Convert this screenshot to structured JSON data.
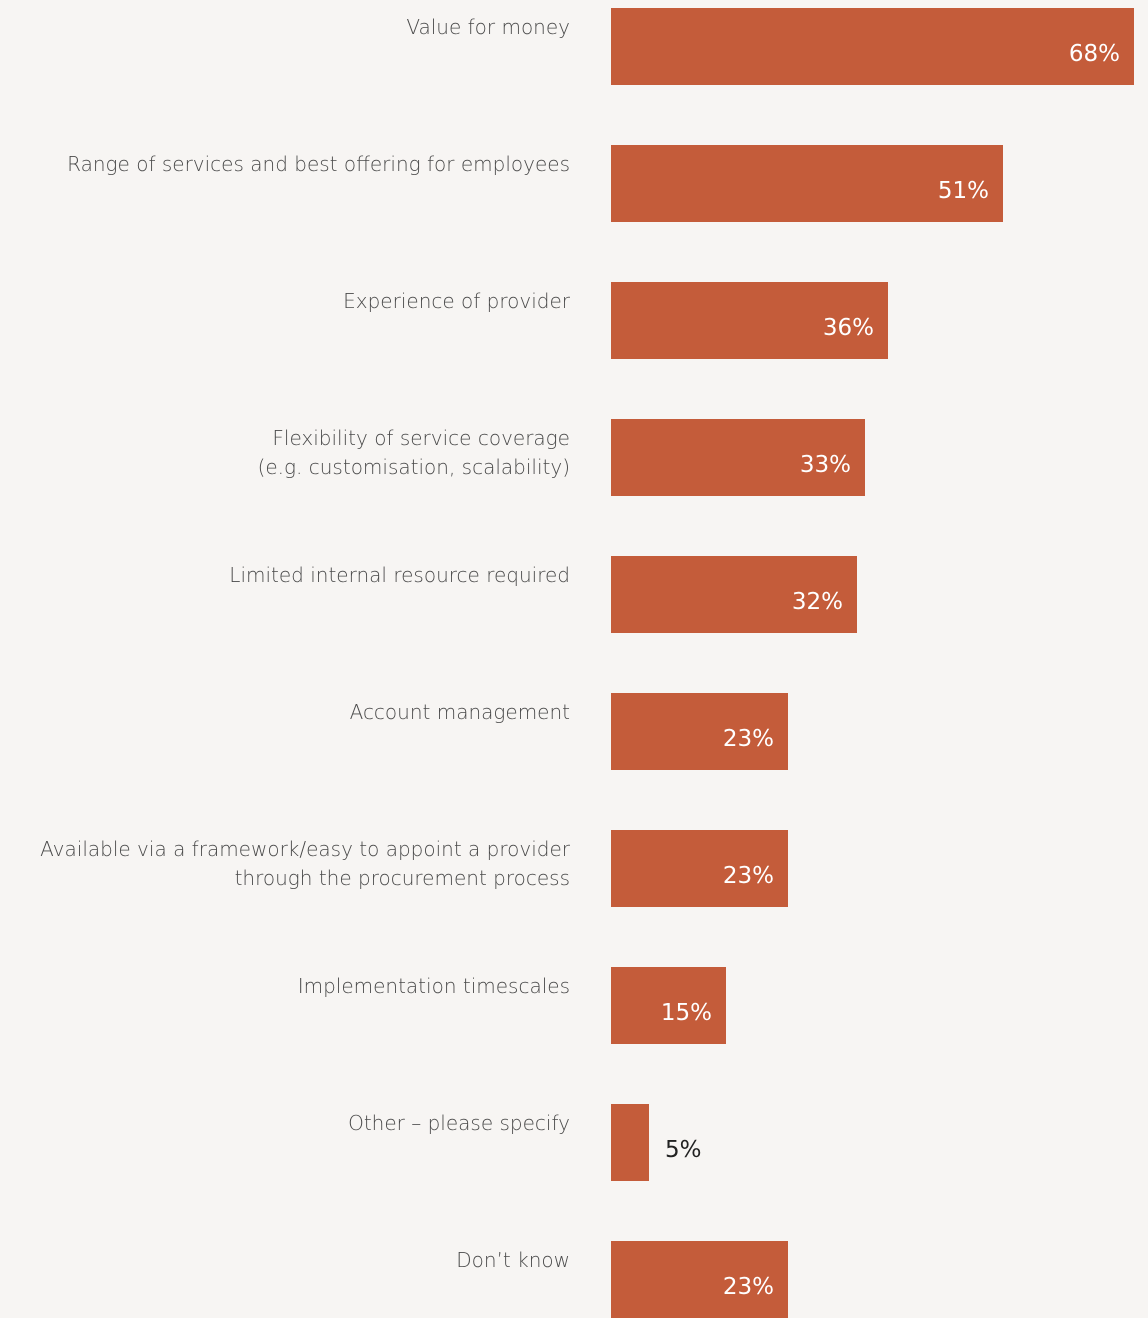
{
  "chart_data": {
    "type": "bar",
    "orientation": "horizontal",
    "categories": [
      [
        "Value for money"
      ],
      [
        "Range of services and best offering for employees"
      ],
      [
        "Experience of provider"
      ],
      [
        "Flexibility of service coverage",
        "(e.g. customisation, scalability)"
      ],
      [
        "Limited internal resource required"
      ],
      [
        "Account management"
      ],
      [
        "Available via a framework/easy to appoint a provider",
        "through the procurement process"
      ],
      [
        "Implementation timescales"
      ],
      [
        "Other – please specify"
      ],
      [
        "Don’t know"
      ]
    ],
    "values": [
      68,
      51,
      36,
      33,
      32,
      23,
      23,
      15,
      5,
      23
    ],
    "value_labels": [
      "68%",
      "51%",
      "36%",
      "33%",
      "32%",
      "23%",
      "23%",
      "15%",
      "5%",
      "23%"
    ],
    "xlim": [
      0,
      68
    ],
    "unit": "%",
    "grid": false,
    "legend": "none"
  },
  "colors": {
    "bar": "#c45c3a",
    "background": "#f7f5f3",
    "label_text": "#4a4a4a",
    "value_inside": "#ffffff",
    "value_outside": "#222222"
  }
}
